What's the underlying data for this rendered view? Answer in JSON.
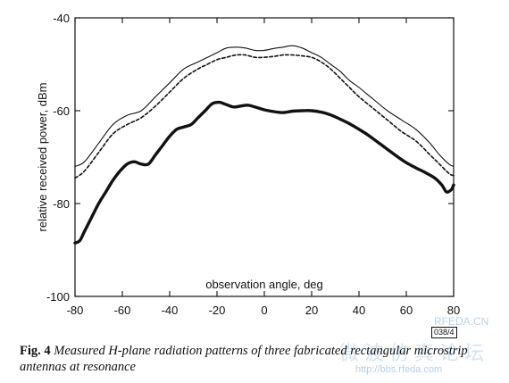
{
  "chart_data": {
    "type": "line",
    "title": "",
    "xlabel": "observation angle, deg",
    "ylabel": "relative received power, dBm",
    "xlim": [
      -80,
      80
    ],
    "ylim": [
      -100,
      -40
    ],
    "xticks": [
      -80,
      -60,
      -40,
      -20,
      0,
      20,
      40,
      60,
      80
    ],
    "yticks": [
      -100,
      -80,
      -60,
      -40
    ],
    "xtick_labels": [
      "-80",
      "-60",
      "-40",
      "-20",
      "0",
      "20",
      "40",
      "60",
      "80"
    ],
    "ytick_labels": [
      "-100",
      "-80",
      "-60",
      "-40"
    ],
    "grid": false,
    "legend": "none",
    "series": [
      {
        "style": "thin-solid",
        "x": [
          -80,
          -76,
          -70,
          -64,
          -58,
          -52,
          -46,
          -40,
          -34,
          -28,
          -24,
          -20,
          -16,
          -12,
          -8,
          -4,
          0,
          4,
          8,
          12,
          16,
          20,
          24,
          28,
          32,
          36,
          40,
          46,
          52,
          58,
          64,
          70,
          74,
          78,
          80
        ],
        "y": [
          -72,
          -71,
          -67,
          -63,
          -61,
          -60,
          -57,
          -54,
          -51,
          -49.5,
          -48.5,
          -47.5,
          -46.5,
          -46.3,
          -46.5,
          -47,
          -47,
          -46.6,
          -46.3,
          -46,
          -46.5,
          -47.5,
          -48.5,
          -50,
          -51.5,
          -53.5,
          -55,
          -57.5,
          -60,
          -62,
          -64,
          -67,
          -69.5,
          -71.5,
          -72
        ]
      },
      {
        "style": "dashed",
        "x": [
          -80,
          -76,
          -70,
          -64,
          -58,
          -52,
          -46,
          -40,
          -34,
          -28,
          -24,
          -20,
          -16,
          -12,
          -8,
          -4,
          0,
          4,
          8,
          12,
          16,
          20,
          24,
          28,
          32,
          36,
          40,
          46,
          52,
          58,
          64,
          70,
          74,
          78,
          80
        ],
        "y": [
          -74.5,
          -73,
          -69,
          -65,
          -63,
          -61.5,
          -59,
          -56,
          -53,
          -51,
          -50,
          -49,
          -48.5,
          -48,
          -48,
          -48.5,
          -48.5,
          -48.3,
          -48,
          -48,
          -48.2,
          -48.5,
          -49.5,
          -51,
          -53,
          -55,
          -57,
          -59.5,
          -62,
          -64.5,
          -66.5,
          -69.5,
          -71.5,
          -73.5,
          -74
        ]
      },
      {
        "style": "thick-solid",
        "x": [
          -80,
          -78,
          -76,
          -73,
          -70,
          -67,
          -64,
          -61,
          -58,
          -55,
          -52,
          -49,
          -46,
          -43,
          -40,
          -37,
          -34,
          -31,
          -28,
          -25,
          -22,
          -19,
          -16,
          -13,
          -10,
          -7,
          -4,
          0,
          4,
          8,
          12,
          16,
          20,
          24,
          28,
          32,
          36,
          40,
          44,
          48,
          52,
          56,
          60,
          64,
          68,
          72,
          75,
          77,
          79,
          80
        ],
        "y": [
          -88.5,
          -88,
          -86,
          -83,
          -80,
          -77.5,
          -75,
          -73,
          -71.5,
          -71,
          -71.5,
          -71.5,
          -69.5,
          -67.5,
          -65.5,
          -64,
          -63.5,
          -63,
          -61.5,
          -60,
          -58.5,
          -58.2,
          -58.7,
          -59.2,
          -59,
          -58.8,
          -59.2,
          -59.8,
          -60.2,
          -60.4,
          -60.1,
          -60,
          -60,
          -60.3,
          -60.9,
          -61.8,
          -62.8,
          -64,
          -65.3,
          -66.8,
          -68.3,
          -69.8,
          -71.2,
          -72.3,
          -73.3,
          -74.5,
          -76,
          -77.5,
          -77,
          -76
        ]
      }
    ]
  },
  "caption": {
    "label": "Fig. 4",
    "text": "Measured H-plane radiation patterns of three fabricated rectangular microstrip antennas at resonance"
  },
  "code_box": "038/4",
  "watermark": {
    "site": "RFEDA.CN",
    "chinese": "微波仿真论坛",
    "url": "http://bbs.rfeda.com"
  }
}
